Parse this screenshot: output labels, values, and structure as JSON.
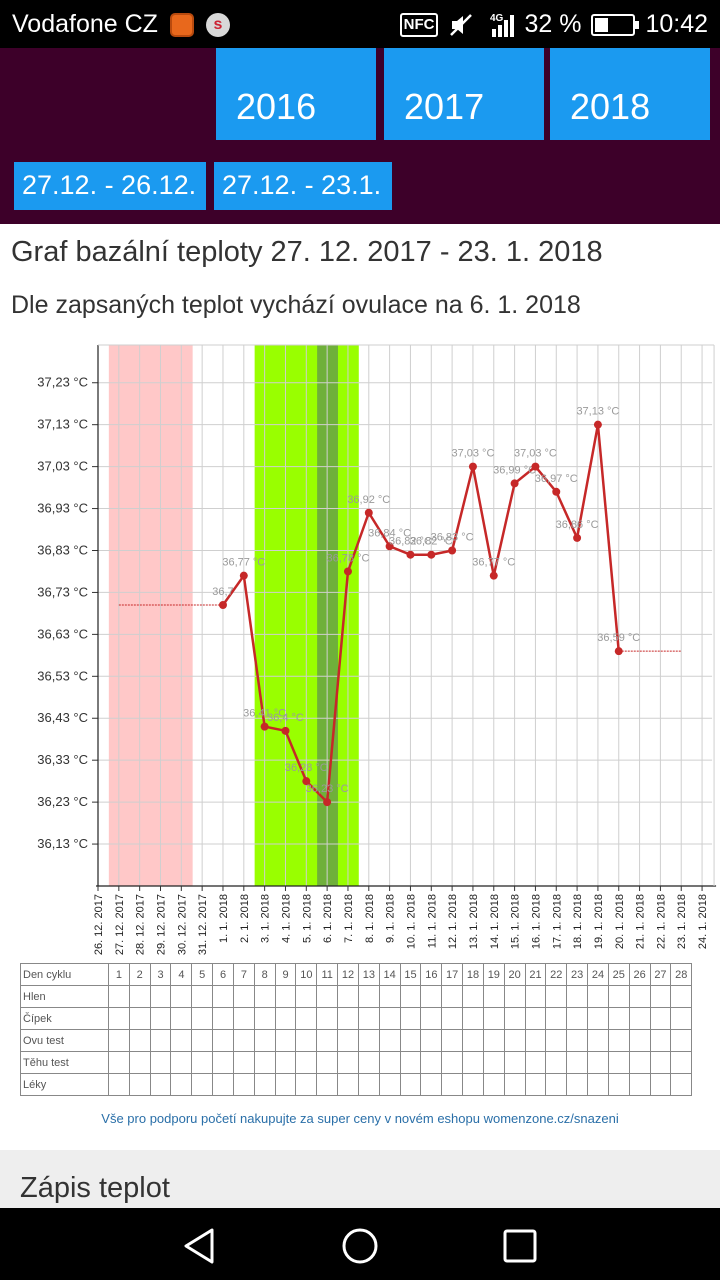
{
  "status": {
    "carrier": "Vodafone CZ",
    "nfc": "NFC",
    "network": "4G",
    "battery": "32 %",
    "battery_level": 0.32,
    "time": "10:42"
  },
  "header": {
    "years": [
      "2016",
      "2017",
      "2018"
    ],
    "ranges": [
      "27.12. - 26.12.",
      "27.12. - 23.1."
    ]
  },
  "title": "Graf bazální teploty 27. 12. 2017 - 23. 1. 2018",
  "subtitle": "Dle zapsaných teplot vychází ovulace na 6. 1. 2018",
  "chart_data": {
    "type": "line",
    "y_ticks": [
      "37,23 °C",
      "37,13 °C",
      "37,03 °C",
      "36,93 °C",
      "36,83 °C",
      "36,73 °C",
      "36,63 °C",
      "36,53 °C",
      "36,43 °C",
      "36,33 °C",
      "36,23 °C",
      "36,13 °C"
    ],
    "ylim": [
      36.03,
      37.32
    ],
    "x_dates": [
      "26. 12. 2017",
      "27. 12. 2017",
      "28. 12. 2017",
      "29. 12. 2017",
      "30. 12. 2017",
      "31. 12. 2017",
      "1. 1. 2018",
      "2. 1. 2018",
      "3. 1. 2018",
      "4. 1. 2018",
      "5. 1. 2018",
      "6. 1. 2018",
      "7. 1. 2018",
      "8. 1. 2018",
      "9. 1. 2018",
      "10. 1. 2018",
      "11. 1. 2018",
      "12. 1. 2018",
      "13. 1. 2018",
      "14. 1. 2018",
      "15. 1. 2018",
      "16. 1. 2018",
      "17. 1. 2018",
      "18. 1. 2018",
      "19. 1. 2018",
      "20. 1. 2018",
      "21. 1. 2018",
      "22. 1. 2018",
      "23. 1. 2018",
      "24. 1. 2018"
    ],
    "points": [
      {
        "day": 6,
        "value": 36.7,
        "label": "36,7"
      },
      {
        "day": 7,
        "value": 36.77,
        "label": "36,77 °C"
      },
      {
        "day": 8,
        "value": 36.41,
        "label": "36,41 °C"
      },
      {
        "day": 9,
        "value": 36.4,
        "label": "36,4 °C"
      },
      {
        "day": 10,
        "value": 36.28,
        "label": "36,28 °C"
      },
      {
        "day": 11,
        "value": 36.23,
        "label": "36,23 °C"
      },
      {
        "day": 12,
        "value": 36.78,
        "label": "36,78 °C"
      },
      {
        "day": 13,
        "value": 36.92,
        "label": "36,92 °C"
      },
      {
        "day": 14,
        "value": 36.84,
        "label": "36,84 °C"
      },
      {
        "day": 15,
        "value": 36.82,
        "label": "36,82 °C"
      },
      {
        "day": 16,
        "value": 36.82,
        "label": "36,82 °C"
      },
      {
        "day": 17,
        "value": 36.83,
        "label": "36,83 °C"
      },
      {
        "day": 18,
        "value": 37.03,
        "label": "37,03 °C"
      },
      {
        "day": 19,
        "value": 36.77,
        "label": "36,77 °C"
      },
      {
        "day": 20,
        "value": 36.99,
        "label": "36,99 °C"
      },
      {
        "day": 21,
        "value": 37.03,
        "label": "37,03 °C"
      },
      {
        "day": 22,
        "value": 36.97,
        "label": "36,97 °C"
      },
      {
        "day": 23,
        "value": 36.86,
        "label": "36,86 °C"
      },
      {
        "day": 24,
        "value": 37.13,
        "label": "37,13 °C"
      },
      {
        "day": 25,
        "value": 36.59,
        "label": "36,59 °C"
      }
    ],
    "baseline_left": {
      "from_day": 1,
      "to_day": 6,
      "value": 36.7
    },
    "baseline_right": {
      "from_day": 25,
      "to_day": 28,
      "value": 36.59
    },
    "menstruation_days": [
      1,
      4
    ],
    "fertile_days": [
      8,
      12
    ],
    "ovulation_day": 11,
    "colors": {
      "line": "#c62828",
      "menstruation": "#ffc8c8",
      "fertile": "#99ff00",
      "ovulation": "#6fb03a"
    }
  },
  "cycle_table": {
    "header_label": "Den cyklu",
    "days": [
      "1",
      "2",
      "3",
      "4",
      "5",
      "6",
      "7",
      "8",
      "9",
      "10",
      "11",
      "12",
      "13",
      "14",
      "15",
      "16",
      "17",
      "18",
      "19",
      "20",
      "21",
      "22",
      "23",
      "24",
      "25",
      "26",
      "27",
      "28"
    ],
    "rows": [
      "Hlen",
      "Čípek",
      "Ovu test",
      "Těhu test",
      "Léky"
    ]
  },
  "promo": "Vše pro podporu početí nakupujte za super ceny v novém eshopu womenzone.cz/snazeni",
  "section_title": "Zápis teplot"
}
